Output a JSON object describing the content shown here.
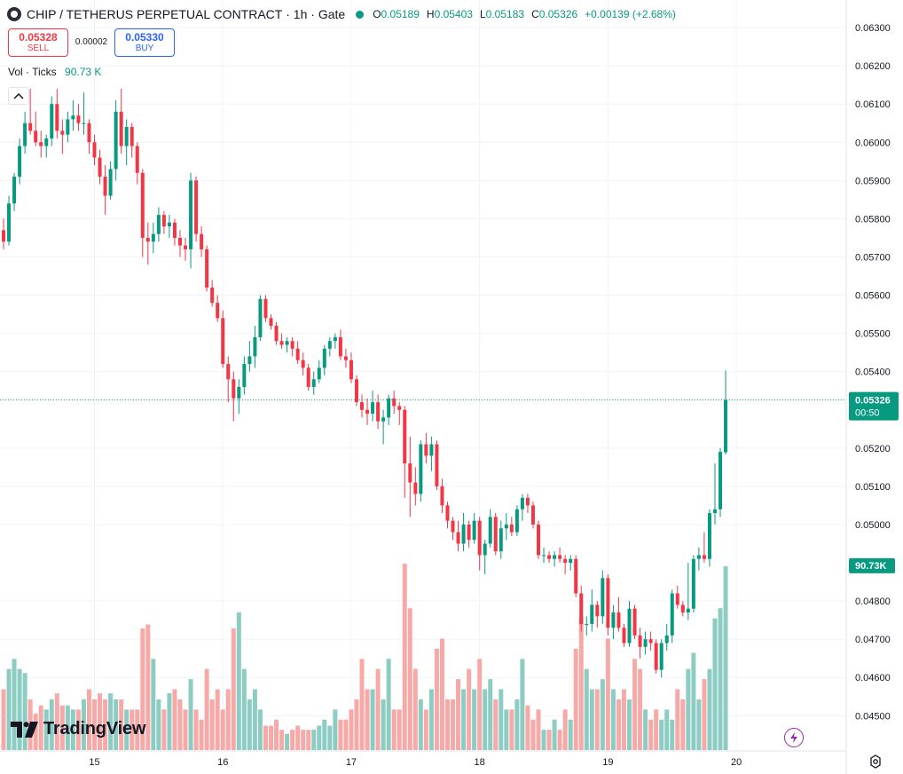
{
  "header": {
    "symbol": "CHIP / TETHERUS PERPETUAL CONTRACT",
    "interval": "1h",
    "exchange": "Gate",
    "title_sep": " · ",
    "ohlc": {
      "o_label": "O",
      "o": "0.05189",
      "h_label": "H",
      "h": "0.05403",
      "l_label": "L",
      "l": "0.05183",
      "c_label": "C",
      "c": "0.05326",
      "change": "+0.00139 (+2.68%)"
    }
  },
  "trade": {
    "sell_price": "0.05328",
    "sell_label": "SELL",
    "spread": "0.00002",
    "buy_price": "0.05330",
    "buy_label": "BUY"
  },
  "volume_legend": {
    "label": "Vol · Ticks",
    "value": "90.73 K"
  },
  "branding": {
    "name": "TradingView"
  },
  "colors": {
    "up": "#089981",
    "down": "#f23645",
    "vol_up": "#8cccc3",
    "vol_down": "#f7a9a7",
    "grid": "#f0f3fa",
    "text": "#131722"
  },
  "icons": {
    "collapse": "chevron-up-icon",
    "replay": "lightning-icon",
    "settings": "gear-icon"
  },
  "chart_data": {
    "type": "candlestick",
    "interval": "1h",
    "y_axis": {
      "min": 0.04445,
      "max": 0.06335,
      "ticks": [
        "0.06300",
        "0.06200",
        "0.06100",
        "0.06000",
        "0.05900",
        "0.05800",
        "0.05700",
        "0.05600",
        "0.05500",
        "0.05400",
        "0.05200",
        "0.05100",
        "0.05000",
        "0.04800",
        "0.04700",
        "0.04600",
        "0.04500"
      ]
    },
    "x_axis": {
      "ticks": [
        "15",
        "16",
        "17",
        "18",
        "19",
        "20"
      ]
    },
    "last_price": {
      "value": "0.05326",
      "countdown": "00:50",
      "raw": 0.05326
    },
    "volume_last": "90.73K",
    "volume_max": 92,
    "candles": [
      [
        0.0577,
        0.058,
        0.0572,
        0.0574,
        30
      ],
      [
        0.0574,
        0.0586,
        0.0573,
        0.0584,
        40
      ],
      [
        0.0584,
        0.0592,
        0.0582,
        0.0591,
        45
      ],
      [
        0.0591,
        0.0601,
        0.0589,
        0.0599,
        40
      ],
      [
        0.0599,
        0.0608,
        0.0597,
        0.0605,
        38
      ],
      [
        0.0605,
        0.0614,
        0.0602,
        0.0603,
        25
      ],
      [
        0.0603,
        0.0608,
        0.0599,
        0.06,
        18
      ],
      [
        0.06,
        0.0603,
        0.0596,
        0.0599,
        22
      ],
      [
        0.0599,
        0.0602,
        0.0596,
        0.0601,
        20
      ],
      [
        0.0601,
        0.0612,
        0.0599,
        0.061,
        25
      ],
      [
        0.061,
        0.0614,
        0.0601,
        0.0603,
        28
      ],
      [
        0.0603,
        0.0606,
        0.0597,
        0.0602,
        22
      ],
      [
        0.0602,
        0.0608,
        0.06,
        0.0606,
        22
      ],
      [
        0.0606,
        0.0611,
        0.0603,
        0.0607,
        20
      ],
      [
        0.0607,
        0.061,
        0.0603,
        0.0605,
        20
      ],
      [
        0.0605,
        0.0613,
        0.0602,
        0.0605,
        25
      ],
      [
        0.0605,
        0.0606,
        0.0597,
        0.06,
        30
      ],
      [
        0.06,
        0.0602,
        0.0594,
        0.0596,
        25
      ],
      [
        0.0596,
        0.0598,
        0.0589,
        0.0591,
        28
      ],
      [
        0.0591,
        0.0594,
        0.0581,
        0.0586,
        25
      ],
      [
        0.0586,
        0.0595,
        0.0585,
        0.0593,
        28
      ],
      [
        0.0593,
        0.0611,
        0.059,
        0.0608,
        25
      ],
      [
        0.0608,
        0.0614,
        0.0597,
        0.0599,
        25
      ],
      [
        0.0599,
        0.0606,
        0.0594,
        0.0604,
        20
      ],
      [
        0.0604,
        0.0605,
        0.0596,
        0.0599,
        20
      ],
      [
        0.0599,
        0.06,
        0.0589,
        0.0592,
        20
      ],
      [
        0.0592,
        0.0593,
        0.057,
        0.0575,
        60
      ],
      [
        0.0575,
        0.0579,
        0.0568,
        0.0574,
        62
      ],
      [
        0.0574,
        0.0579,
        0.0571,
        0.0576,
        45
      ],
      [
        0.0576,
        0.0583,
        0.0574,
        0.0581,
        25
      ],
      [
        0.0581,
        0.0582,
        0.0576,
        0.0578,
        20
      ],
      [
        0.0578,
        0.0581,
        0.0575,
        0.0579,
        28
      ],
      [
        0.0579,
        0.058,
        0.0573,
        0.0575,
        30
      ],
      [
        0.0575,
        0.0577,
        0.057,
        0.0573,
        25
      ],
      [
        0.0573,
        0.0575,
        0.0569,
        0.0572,
        20
      ],
      [
        0.0572,
        0.0592,
        0.0567,
        0.059,
        35
      ],
      [
        0.059,
        0.0591,
        0.0574,
        0.0576,
        20
      ],
      [
        0.0576,
        0.0578,
        0.057,
        0.0572,
        15
      ],
      [
        0.0572,
        0.0573,
        0.0561,
        0.0562,
        40
      ],
      [
        0.0562,
        0.0564,
        0.0557,
        0.0558,
        25
      ],
      [
        0.0558,
        0.056,
        0.0553,
        0.0554,
        30
      ],
      [
        0.0554,
        0.0556,
        0.0541,
        0.0542,
        20
      ],
      [
        0.0542,
        0.0544,
        0.0532,
        0.0538,
        30
      ],
      [
        0.0538,
        0.054,
        0.0527,
        0.0533,
        60
      ],
      [
        0.0533,
        0.0538,
        0.0529,
        0.0536,
        68
      ],
      [
        0.0536,
        0.0544,
        0.0534,
        0.0542,
        40
      ],
      [
        0.0542,
        0.0548,
        0.054,
        0.0544,
        25
      ],
      [
        0.0544,
        0.0552,
        0.0541,
        0.0549,
        30
      ],
      [
        0.0549,
        0.056,
        0.0548,
        0.0559,
        20
      ],
      [
        0.0559,
        0.056,
        0.0553,
        0.0554,
        12
      ],
      [
        0.0554,
        0.0555,
        0.0551,
        0.0552,
        12
      ],
      [
        0.0552,
        0.0553,
        0.0547,
        0.0548,
        15
      ],
      [
        0.0548,
        0.055,
        0.0546,
        0.0547,
        10
      ],
      [
        0.0547,
        0.0549,
        0.0545,
        0.0548,
        8
      ],
      [
        0.0548,
        0.0549,
        0.0544,
        0.0546,
        10
      ],
      [
        0.0546,
        0.0548,
        0.0542,
        0.0543,
        12
      ],
      [
        0.0543,
        0.0545,
        0.0539,
        0.0541,
        10
      ],
      [
        0.0541,
        0.0542,
        0.0535,
        0.0536,
        10
      ],
      [
        0.0536,
        0.054,
        0.0534,
        0.0538,
        10
      ],
      [
        0.0538,
        0.0543,
        0.0537,
        0.0541,
        12
      ],
      [
        0.0541,
        0.0547,
        0.0539,
        0.0546,
        15
      ],
      [
        0.0546,
        0.0549,
        0.0544,
        0.0548,
        12
      ],
      [
        0.0548,
        0.055,
        0.0546,
        0.0549,
        20
      ],
      [
        0.0549,
        0.0551,
        0.0543,
        0.0544,
        15
      ],
      [
        0.0544,
        0.0546,
        0.0541,
        0.0543,
        15
      ],
      [
        0.0543,
        0.0545,
        0.0537,
        0.0538,
        20
      ],
      [
        0.0538,
        0.0539,
        0.0531,
        0.0532,
        25
      ],
      [
        0.0532,
        0.0534,
        0.0528,
        0.053,
        45
      ],
      [
        0.053,
        0.0533,
        0.0526,
        0.0529,
        30
      ],
      [
        0.0529,
        0.0535,
        0.0527,
        0.0532,
        30
      ],
      [
        0.0532,
        0.0534,
        0.0525,
        0.0527,
        40
      ],
      [
        0.0527,
        0.053,
        0.0521,
        0.0528,
        25
      ],
      [
        0.0528,
        0.0534,
        0.0526,
        0.0533,
        45
      ],
      [
        0.0533,
        0.0535,
        0.0529,
        0.0531,
        20
      ],
      [
        0.0531,
        0.0532,
        0.0526,
        0.053,
        20
      ],
      [
        0.053,
        0.0531,
        0.0507,
        0.0516,
        92
      ],
      [
        0.0516,
        0.0523,
        0.0502,
        0.0511,
        70
      ],
      [
        0.0511,
        0.0515,
        0.0505,
        0.0508,
        40
      ],
      [
        0.0508,
        0.0522,
        0.0506,
        0.0521,
        25
      ],
      [
        0.0521,
        0.0524,
        0.0516,
        0.0518,
        20
      ],
      [
        0.0518,
        0.0523,
        0.0514,
        0.0521,
        30
      ],
      [
        0.0521,
        0.0522,
        0.0509,
        0.051,
        50
      ],
      [
        0.051,
        0.0512,
        0.0503,
        0.0505,
        55
      ],
      [
        0.0505,
        0.0506,
        0.0499,
        0.0501,
        25
      ],
      [
        0.0501,
        0.0502,
        0.0496,
        0.0498,
        25
      ],
      [
        0.0498,
        0.0501,
        0.0493,
        0.0495,
        35
      ],
      [
        0.0495,
        0.0503,
        0.0493,
        0.05,
        30
      ],
      [
        0.05,
        0.0501,
        0.0494,
        0.0496,
        40
      ],
      [
        0.0496,
        0.0503,
        0.0495,
        0.0501,
        30
      ],
      [
        0.0501,
        0.0502,
        0.0488,
        0.0492,
        45
      ],
      [
        0.0492,
        0.0496,
        0.0487,
        0.0495,
        30
      ],
      [
        0.0495,
        0.0504,
        0.0494,
        0.0502,
        35
      ],
      [
        0.0502,
        0.0503,
        0.0492,
        0.0493,
        25
      ],
      [
        0.0493,
        0.0501,
        0.0491,
        0.0499,
        30
      ],
      [
        0.0499,
        0.0503,
        0.0496,
        0.05,
        20
      ],
      [
        0.05,
        0.0502,
        0.0497,
        0.0498,
        20
      ],
      [
        0.0498,
        0.0505,
        0.0497,
        0.0504,
        25
      ],
      [
        0.0504,
        0.0508,
        0.0501,
        0.0507,
        45
      ],
      [
        0.0507,
        0.0508,
        0.0503,
        0.0505,
        22
      ],
      [
        0.0505,
        0.0506,
        0.0499,
        0.05,
        15
      ],
      [
        0.05,
        0.0501,
        0.0491,
        0.0492,
        20
      ],
      [
        0.0492,
        0.0494,
        0.049,
        0.0492,
        10
      ],
      [
        0.0492,
        0.0493,
        0.049,
        0.0491,
        10
      ],
      [
        0.0491,
        0.0493,
        0.0489,
        0.0492,
        15
      ],
      [
        0.0492,
        0.0494,
        0.049,
        0.0491,
        10
      ],
      [
        0.0491,
        0.0492,
        0.0487,
        0.049,
        20
      ],
      [
        0.049,
        0.0492,
        0.0488,
        0.0491,
        15
      ],
      [
        0.0491,
        0.0492,
        0.0481,
        0.0482,
        50
      ],
      [
        0.0482,
        0.0484,
        0.0472,
        0.0474,
        65
      ],
      [
        0.0474,
        0.0476,
        0.0471,
        0.0474,
        40
      ],
      [
        0.0474,
        0.0483,
        0.0472,
        0.0479,
        30
      ],
      [
        0.0479,
        0.048,
        0.0473,
        0.0476,
        30
      ],
      [
        0.0476,
        0.0488,
        0.0474,
        0.0486,
        35
      ],
      [
        0.0486,
        0.0487,
        0.0471,
        0.0473,
        55
      ],
      [
        0.0473,
        0.0479,
        0.047,
        0.0477,
        30
      ],
      [
        0.0477,
        0.0481,
        0.0472,
        0.0473,
        25
      ],
      [
        0.0473,
        0.0474,
        0.0468,
        0.0469,
        30
      ],
      [
        0.0469,
        0.048,
        0.0468,
        0.0478,
        25
      ],
      [
        0.0478,
        0.0479,
        0.047,
        0.0471,
        45
      ],
      [
        0.0471,
        0.0473,
        0.0465,
        0.0468,
        40
      ],
      [
        0.0468,
        0.0472,
        0.0466,
        0.047,
        20
      ],
      [
        0.047,
        0.0472,
        0.0467,
        0.0469,
        15
      ],
      [
        0.0469,
        0.047,
        0.0461,
        0.0462,
        20
      ],
      [
        0.0462,
        0.047,
        0.046,
        0.0469,
        15
      ],
      [
        0.0469,
        0.0474,
        0.0467,
        0.0471,
        20
      ],
      [
        0.0471,
        0.0483,
        0.0469,
        0.0482,
        15
      ],
      [
        0.0482,
        0.0484,
        0.0478,
        0.0479,
        30
      ],
      [
        0.0479,
        0.048,
        0.0476,
        0.0477,
        25
      ],
      [
        0.0477,
        0.049,
        0.0475,
        0.0478,
        40
      ],
      [
        0.0478,
        0.0492,
        0.0477,
        0.0491,
        48
      ],
      [
        0.0491,
        0.0494,
        0.0488,
        0.0492,
        25
      ],
      [
        0.0492,
        0.0498,
        0.049,
        0.0491,
        35
      ],
      [
        0.0491,
        0.0504,
        0.0489,
        0.0503,
        40
      ],
      [
        0.0503,
        0.0516,
        0.05,
        0.0504,
        65
      ],
      [
        0.0504,
        0.052,
        0.0502,
        0.0519,
        70
      ],
      [
        0.05189,
        0.05403,
        0.05183,
        0.05326,
        90.73
      ]
    ]
  }
}
